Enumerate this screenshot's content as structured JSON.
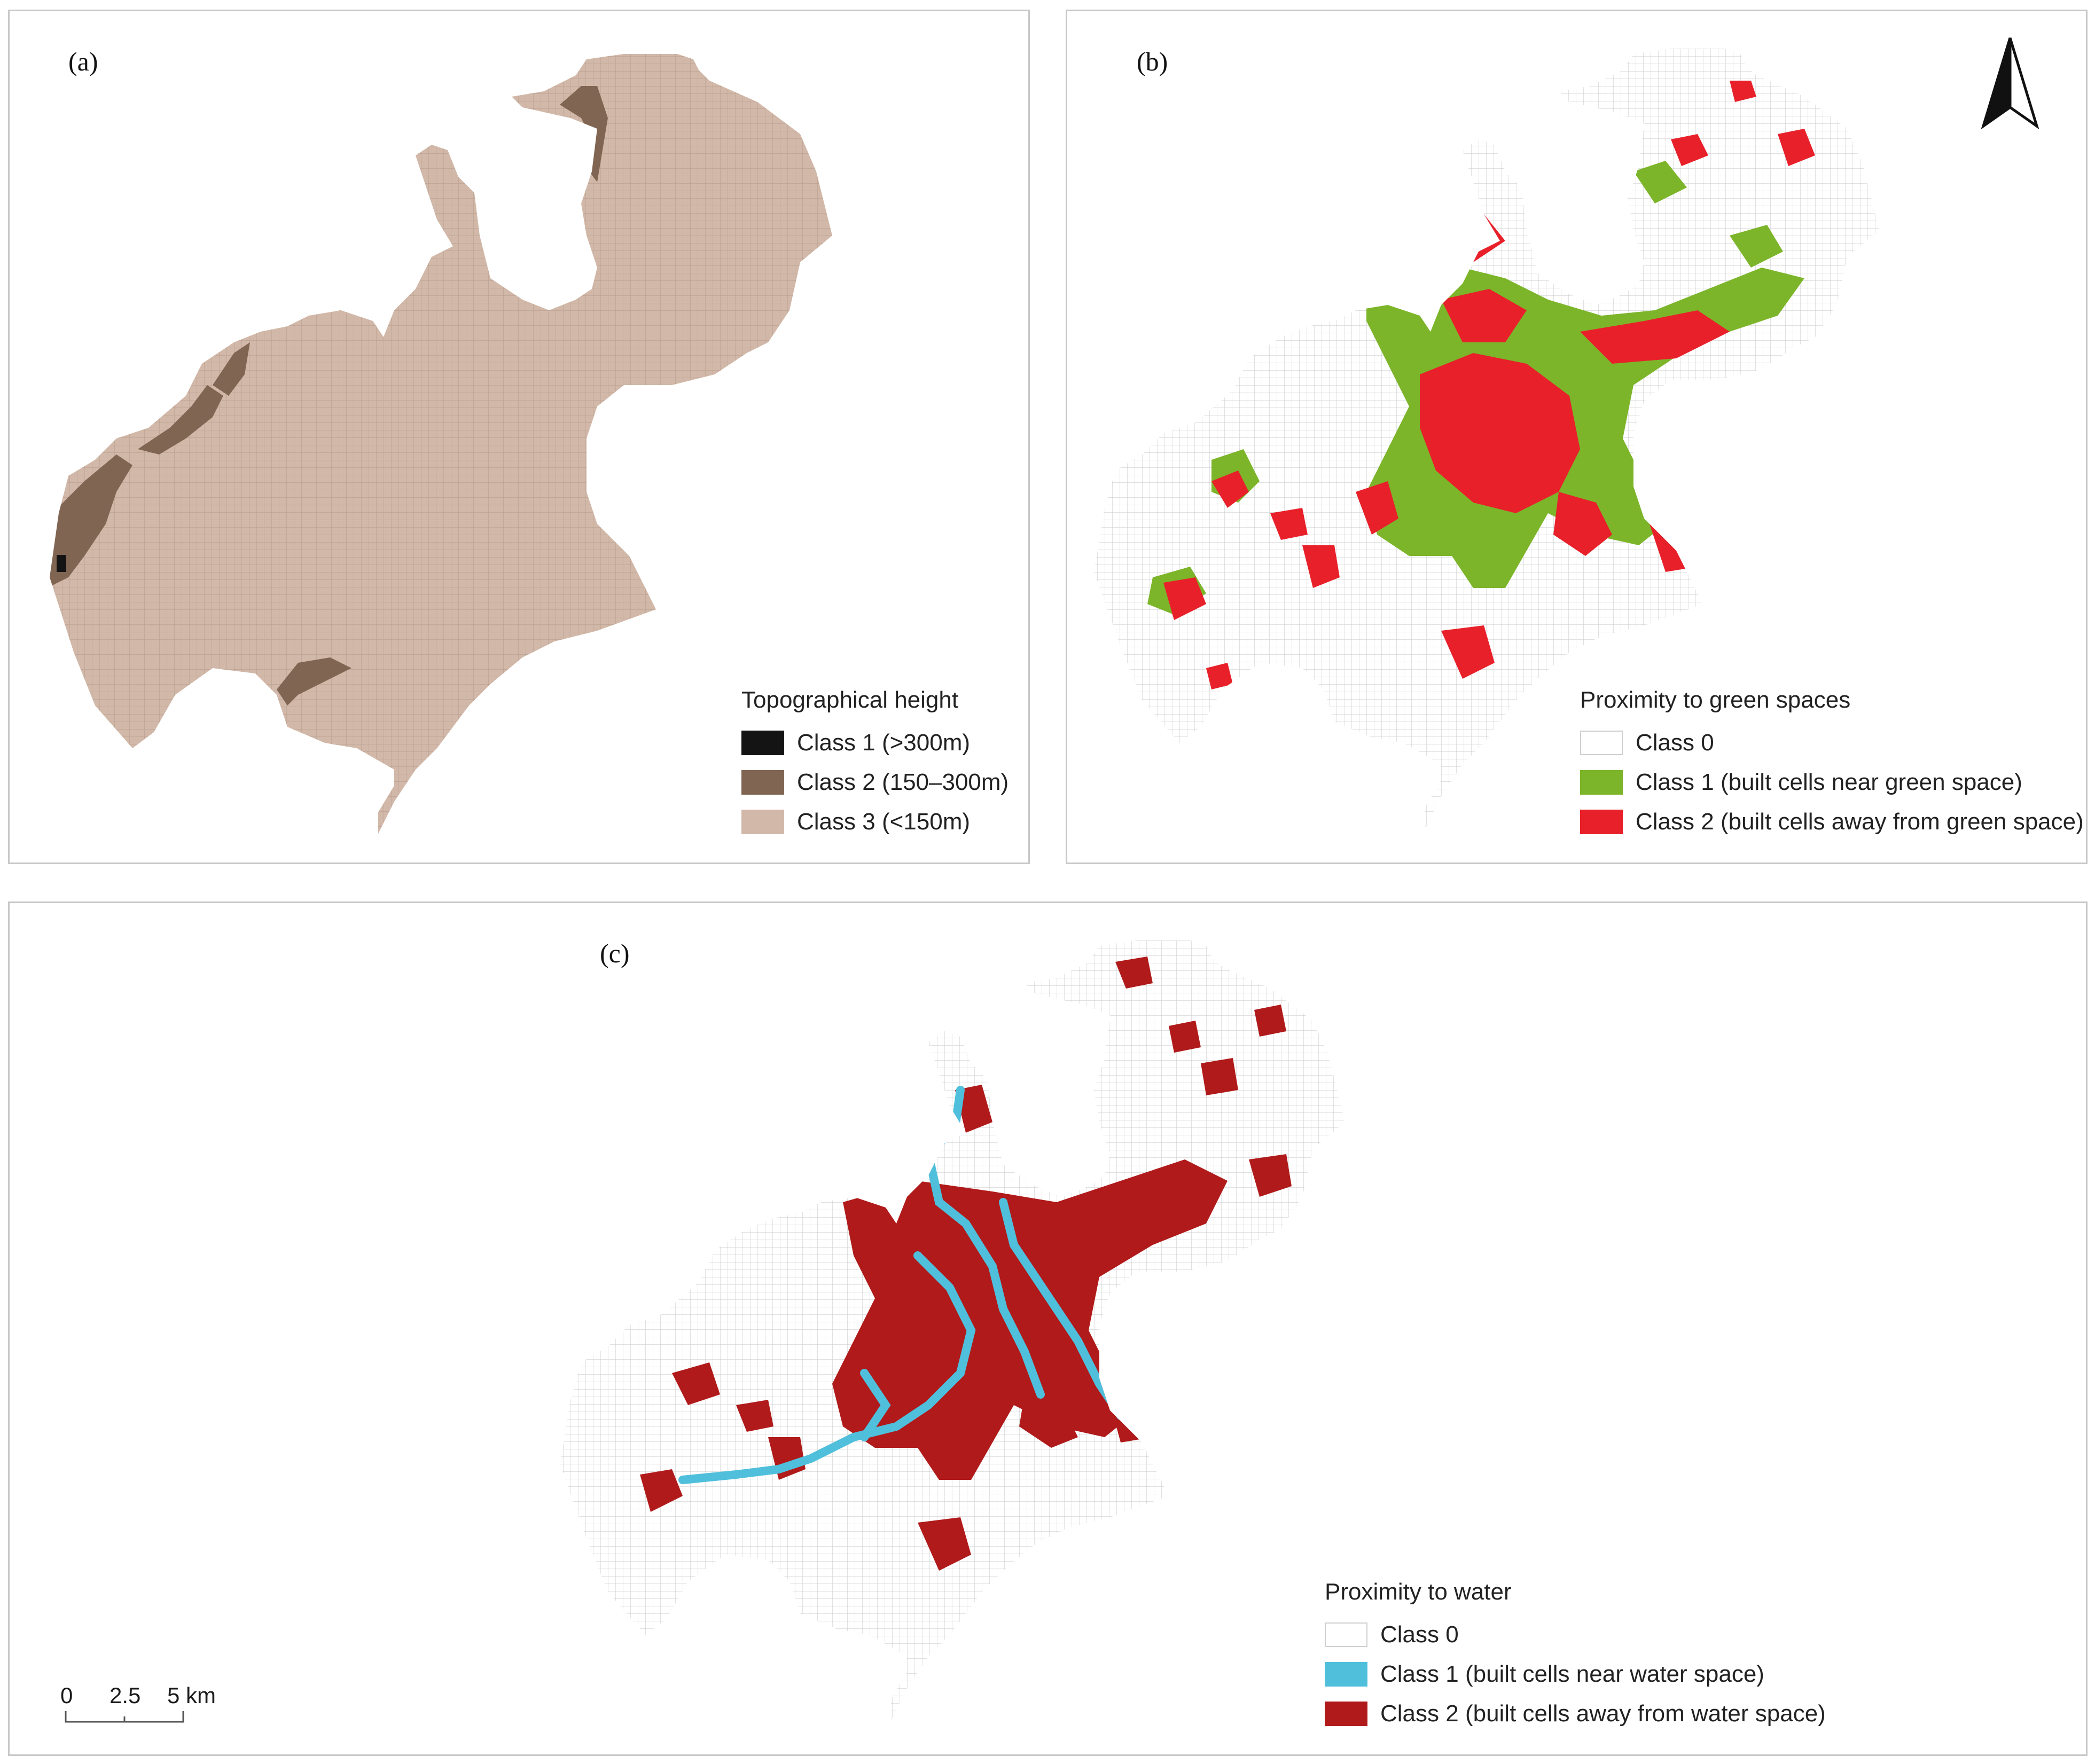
{
  "colors": {
    "grid_line": "#cfcfcf",
    "grid_fill": "#ffffff",
    "topo_class1": "#141414",
    "topo_class2": "#806552",
    "topo_class3": "#d2b8a8",
    "green_class1": "#7cb52a",
    "green_class2": "#e8202a",
    "water_class1": "#4fbfdb",
    "water_class2": "#b01a1a"
  },
  "panel_a": {
    "label": "(a)",
    "legend": {
      "title": "Topographical height",
      "items": [
        {
          "label": "Class 1 (>300m)",
          "color": "#141414"
        },
        {
          "label": "Class 2 (150–300m)",
          "color": "#806552"
        },
        {
          "label": "Class 3 (<150m)",
          "color": "#d2b8a8"
        }
      ]
    }
  },
  "panel_b": {
    "label": "(b)",
    "north_arrow": "north-arrow-icon",
    "legend": {
      "title": "Proximity to green spaces",
      "items": [
        {
          "label": "Class 0",
          "color": "#ffffff"
        },
        {
          "label": "Class 1 (built cells near green space)",
          "color": "#7cb52a"
        },
        {
          "label": "Class 2 (built cells away from green space)",
          "color": "#e8202a"
        }
      ]
    }
  },
  "panel_c": {
    "label": "(c)",
    "legend": {
      "title": "Proximity to water",
      "items": [
        {
          "label": "Class 0",
          "color": "#ffffff"
        },
        {
          "label": "Class 1 (built cells near water space)",
          "color": "#4fbfdb"
        },
        {
          "label": "Class 2 (built cells away from water space)",
          "color": "#b01a1a"
        }
      ]
    }
  },
  "scale_bar": {
    "ticks": [
      "0",
      "2.5",
      "5 km"
    ]
  }
}
